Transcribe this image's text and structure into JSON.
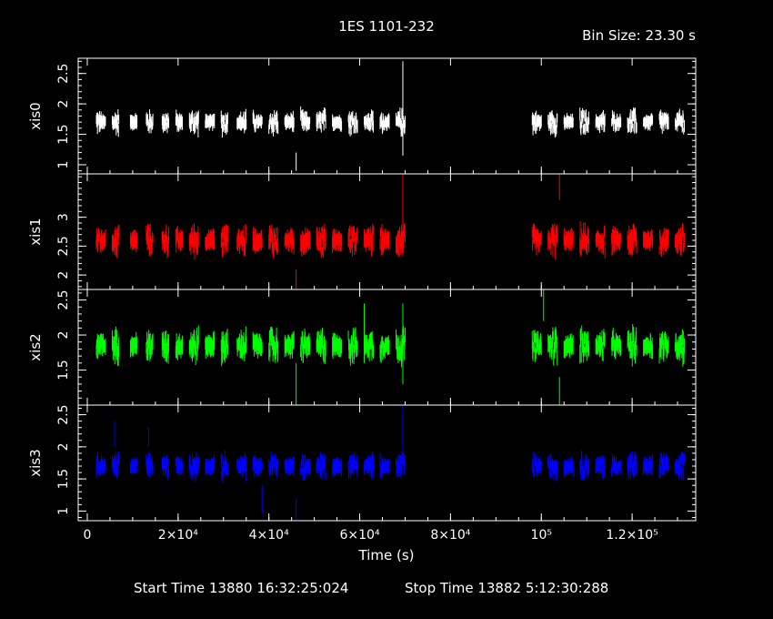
{
  "chart_data": {
    "type": "scatter",
    "title": "1ES 1101-232",
    "bin_size": "Bin Size: 23.30 s",
    "xlabel": "Time (s)",
    "xlim": [
      -2000,
      134000
    ],
    "x_tick_labels": [
      {
        "value": 0,
        "label": "0"
      },
      {
        "value": 20000,
        "label": "2×10⁴"
      },
      {
        "value": 40000,
        "label": "4×10⁴"
      },
      {
        "value": 60000,
        "label": "6×10⁴"
      },
      {
        "value": 80000,
        "label": "8×10⁴"
      },
      {
        "value": 100000,
        "label": "10⁵"
      },
      {
        "value": 120000,
        "label": "1.2×10⁵"
      }
    ],
    "start_time": "Start Time 13880 16:32:25:024",
    "stop_time": "Stop Time 13882  5:12:30:288",
    "observing_windows": [
      [
        2000,
        4000
      ],
      [
        5500,
        7000
      ],
      [
        9500,
        11000
      ],
      [
        13000,
        14500
      ],
      [
        16500,
        18000
      ],
      [
        19500,
        21000
      ],
      [
        22500,
        24500
      ],
      [
        26000,
        28000
      ],
      [
        29500,
        31000
      ],
      [
        33000,
        35000
      ],
      [
        36500,
        38500
      ],
      [
        40000,
        42000
      ],
      [
        43500,
        45500
      ],
      [
        47000,
        49000
      ],
      [
        50500,
        52500
      ],
      [
        54000,
        56000
      ],
      [
        57500,
        59500
      ],
      [
        61000,
        63000
      ],
      [
        64500,
        66500
      ],
      [
        68000,
        70000
      ],
      [
        98000,
        100000
      ],
      [
        101500,
        103500
      ],
      [
        105000,
        107000
      ],
      [
        108500,
        110500
      ],
      [
        112000,
        114000
      ],
      [
        115500,
        117500
      ],
      [
        119000,
        121000
      ],
      [
        122500,
        124500
      ],
      [
        126000,
        128000
      ],
      [
        129500,
        131500
      ]
    ],
    "series": [
      {
        "name": "xis0",
        "color": "#ffffff",
        "ylim": [
          0.85,
          2.75
        ],
        "yticks": [
          {
            "value": 1,
            "label": "1"
          },
          {
            "value": 1.5,
            "label": "1.5"
          },
          {
            "value": 2,
            "label": "2"
          },
          {
            "value": 2.5,
            "label": "2.5"
          }
        ],
        "mean": 1.7,
        "noise": 0.15,
        "spikes": [
          [
            69500,
            1.15,
            2.7
          ],
          [
            46000,
            0.9,
            1.2
          ]
        ]
      },
      {
        "name": "xis1",
        "color": "#ff0000",
        "ylim": [
          1.75,
          3.75
        ],
        "yticks": [
          {
            "value": 2,
            "label": "2"
          },
          {
            "value": 2.5,
            "label": "2.5"
          },
          {
            "value": 3,
            "label": "3"
          }
        ],
        "mean": 2.6,
        "noise": 0.2,
        "spikes": [
          [
            69500,
            2.4,
            3.75
          ],
          [
            46000,
            1.75,
            2.1
          ],
          [
            104000,
            3.3,
            3.75
          ]
        ]
      },
      {
        "name": "xis2",
        "color": "#00ff00",
        "ylim": [
          1.0,
          2.65
        ],
        "yticks": [
          {
            "value": 1.5,
            "label": "1.5"
          },
          {
            "value": 2,
            "label": "2"
          },
          {
            "value": 2.5,
            "label": "2.5"
          }
        ],
        "mean": 1.85,
        "noise": 0.18,
        "spikes": [
          [
            69500,
            1.3,
            2.45
          ],
          [
            46000,
            1.0,
            1.6
          ],
          [
            104000,
            1.0,
            1.4
          ],
          [
            100500,
            2.2,
            2.65
          ],
          [
            61000,
            1.6,
            2.45
          ]
        ]
      },
      {
        "name": "xis3",
        "color": "#0000ff",
        "ylim": [
          0.85,
          2.65
        ],
        "yticks": [
          {
            "value": 1,
            "label": "1"
          },
          {
            "value": 1.5,
            "label": "1.5"
          },
          {
            "value": 2,
            "label": "2"
          },
          {
            "value": 2.5,
            "label": "2.5"
          }
        ],
        "mean": 1.7,
        "noise": 0.15,
        "spikes": [
          [
            69500,
            1.9,
            2.65
          ],
          [
            46000,
            0.85,
            1.2
          ],
          [
            38500,
            0.95,
            1.4
          ],
          [
            6000,
            2.0,
            2.4
          ],
          [
            13500,
            2.0,
            2.3
          ]
        ]
      }
    ]
  }
}
